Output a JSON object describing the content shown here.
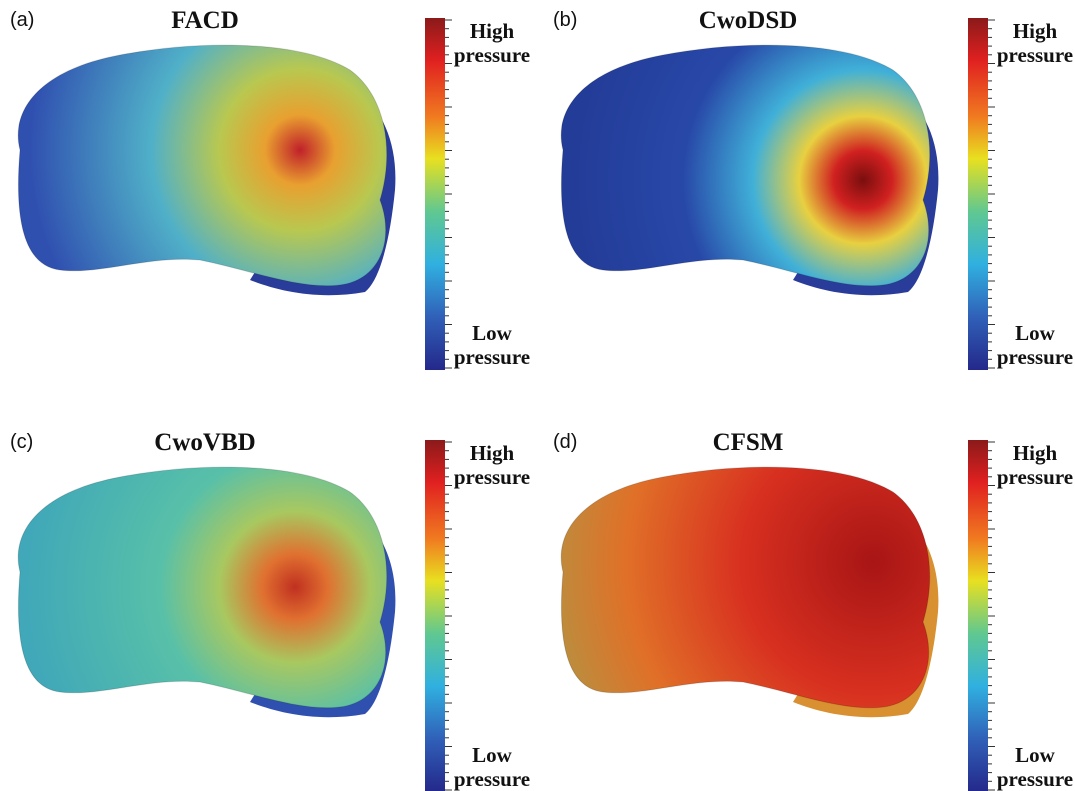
{
  "panels": [
    {
      "label": "(a)",
      "title": "FACD",
      "high": [
        "High",
        "pressure"
      ],
      "low": [
        "Low",
        "pressure"
      ]
    },
    {
      "label": "(b)",
      "title": "CwoDSD",
      "high": [
        "High",
        "pressure"
      ],
      "low": [
        "Low",
        "pressure"
      ]
    },
    {
      "label": "(c)",
      "title": "CwoVBD",
      "high": [
        "High",
        "pressure"
      ],
      "low": [
        "Low",
        "pressure"
      ]
    },
    {
      "label": "(d)",
      "title": "CFSM",
      "high": [
        "High",
        "pressure"
      ],
      "low": [
        "Low",
        "pressure"
      ]
    }
  ]
}
